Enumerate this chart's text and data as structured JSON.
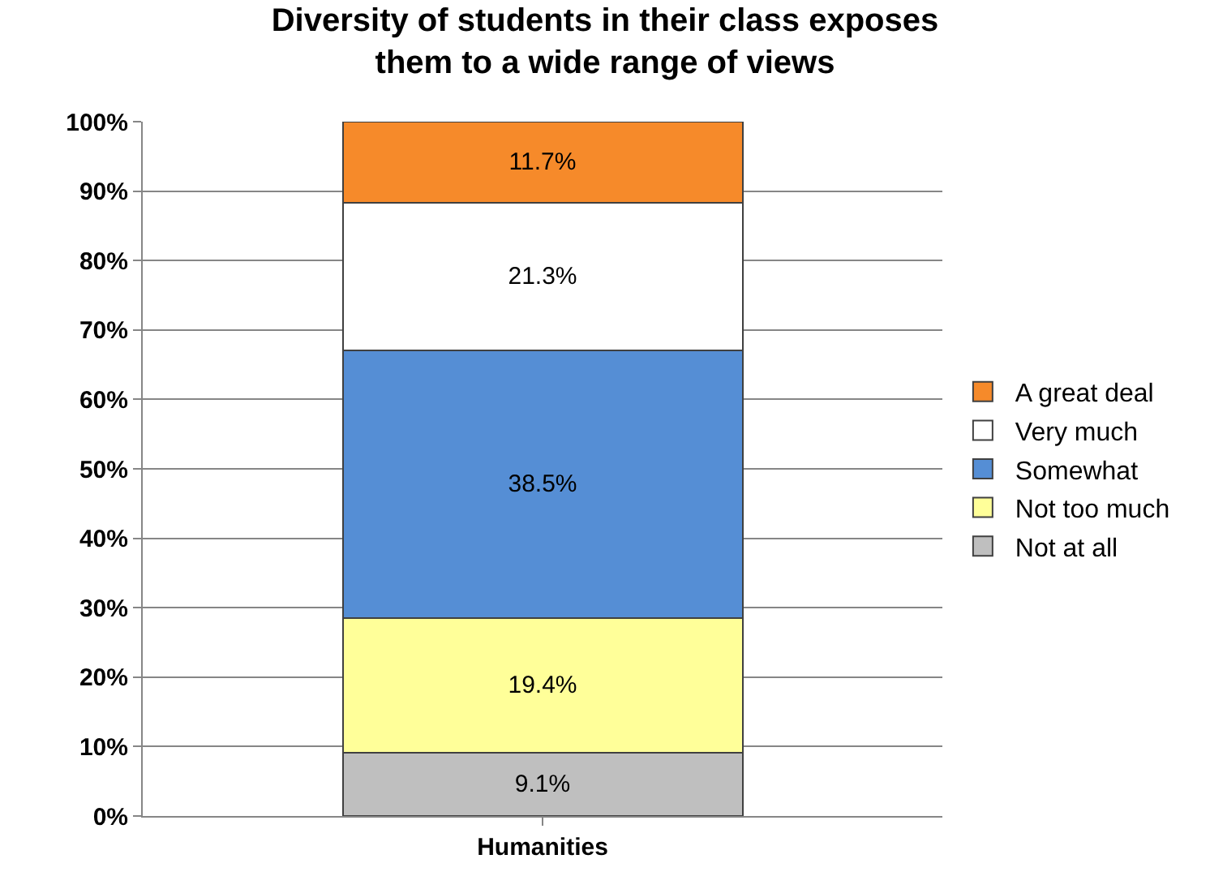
{
  "chart_data": {
    "type": "bar",
    "title": "Diversity of students in their class exposes them to a wide range of views",
    "stacked": true,
    "categories": [
      "Humanities"
    ],
    "series": [
      {
        "name": "Not at all",
        "color": "#bfbfbf",
        "values": [
          9.1
        ],
        "value_labels": [
          "9.1%"
        ]
      },
      {
        "name": "Not too much",
        "color": "#ffff99",
        "values": [
          19.4
        ],
        "value_labels": [
          "19.4%"
        ]
      },
      {
        "name": "Somewhat",
        "color": "#558ed5",
        "values": [
          38.5
        ],
        "value_labels": [
          "38.5%"
        ]
      },
      {
        "name": "Very much",
        "color": "#ffffff",
        "values": [
          21.3
        ],
        "value_labels": [
          "21.3%"
        ]
      },
      {
        "name": "A great deal",
        "color": "#f68a2a",
        "values": [
          11.7
        ],
        "value_labels": [
          "11.7%"
        ]
      }
    ],
    "ylim": [
      0,
      100
    ],
    "yticks": [
      {
        "value": 0,
        "label": "0%"
      },
      {
        "value": 10,
        "label": "10%"
      },
      {
        "value": 20,
        "label": "20%"
      },
      {
        "value": 30,
        "label": "30%"
      },
      {
        "value": 40,
        "label": "40%"
      },
      {
        "value": 50,
        "label": "50%"
      },
      {
        "value": 60,
        "label": "60%"
      },
      {
        "value": 70,
        "label": "70%"
      },
      {
        "value": 80,
        "label": "80%"
      },
      {
        "value": 90,
        "label": "90%"
      },
      {
        "value": 100,
        "label": "100%"
      }
    ],
    "grid": "y",
    "legend": "right"
  }
}
